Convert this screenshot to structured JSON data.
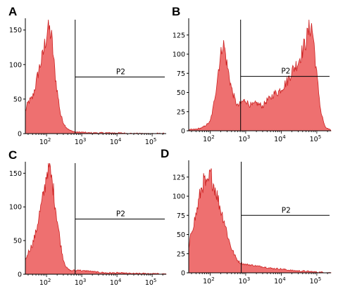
{
  "colors": {
    "fill": "#ee7070",
    "stroke": "#cc2222",
    "axis": "#000000"
  },
  "chart_data": [
    {
      "type": "area",
      "panel": "A",
      "gate_label": "P2",
      "gate_x": 650,
      "gate_y": 82,
      "xscale": "log",
      "xlim": [
        25,
        250000
      ],
      "ylim": [
        0,
        165
      ],
      "yticks": [
        0,
        50,
        100,
        150
      ],
      "xticks": [
        {
          "v": 100,
          "label": "10",
          "exp": "2"
        },
        {
          "v": 1000,
          "label": "10",
          "exp": "3"
        },
        {
          "v": 10000,
          "label": "10",
          "exp": "4"
        },
        {
          "v": 100000,
          "label": "10",
          "exp": "5"
        }
      ],
      "x": [
        25,
        30,
        40,
        50,
        60,
        70,
        80,
        90,
        100,
        110,
        120,
        130,
        140,
        150,
        170,
        200,
        250,
        300,
        350,
        400,
        450,
        500,
        600,
        700,
        800,
        1000,
        1500,
        2000,
        5000,
        10000,
        30000,
        100000,
        250000
      ],
      "y": [
        32,
        45,
        52,
        72,
        92,
        104,
        115,
        132,
        140,
        157,
        150,
        145,
        138,
        122,
        92,
        62,
        28,
        16,
        10,
        7,
        5,
        4,
        3,
        2,
        2,
        2,
        1,
        1,
        1,
        1,
        0,
        0,
        0
      ]
    },
    {
      "type": "area",
      "panel": "B",
      "gate_label": "P2",
      "gate_x": 720,
      "gate_y": 71,
      "xscale": "log",
      "xlim": [
        25,
        250000
      ],
      "ylim": [
        0,
        145
      ],
      "yticks": [
        0,
        25,
        50,
        75,
        100,
        125
      ],
      "xticks": [
        {
          "v": 100,
          "label": "10",
          "exp": "2"
        },
        {
          "v": 1000,
          "label": "10",
          "exp": "3"
        },
        {
          "v": 10000,
          "label": "10",
          "exp": "4"
        },
        {
          "v": 100000,
          "label": "10",
          "exp": "5"
        }
      ],
      "x": [
        25,
        40,
        60,
        80,
        100,
        120,
        150,
        180,
        200,
        220,
        250,
        280,
        300,
        350,
        400,
        500,
        600,
        700,
        800,
        1000,
        1200,
        1500,
        2000,
        2500,
        3000,
        4000,
        5000,
        6000,
        8000,
        10000,
        15000,
        20000,
        30000,
        40000,
        50000,
        60000,
        70000,
        80000,
        100000,
        130000,
        170000,
        250000
      ],
      "y": [
        1,
        2,
        4,
        8,
        12,
        28,
        58,
        88,
        98,
        114,
        110,
        95,
        85,
        70,
        55,
        40,
        32,
        35,
        38,
        40,
        35,
        33,
        36,
        34,
        32,
        40,
        42,
        48,
        50,
        55,
        65,
        78,
        90,
        105,
        118,
        132,
        138,
        122,
        72,
        25,
        5,
        0
      ]
    },
    {
      "type": "area",
      "panel": "C",
      "gate_label": "P2",
      "gate_x": 650,
      "gate_y": 82,
      "xscale": "log",
      "xlim": [
        25,
        250000
      ],
      "ylim": [
        0,
        165
      ],
      "yticks": [
        0,
        50,
        100,
        150
      ],
      "xticks": [
        {
          "v": 100,
          "label": "10",
          "exp": "2"
        },
        {
          "v": 1000,
          "label": "10",
          "exp": "3"
        },
        {
          "v": 10000,
          "label": "10",
          "exp": "4"
        },
        {
          "v": 100000,
          "label": "10",
          "exp": "5"
        }
      ],
      "x": [
        25,
        30,
        40,
        50,
        60,
        70,
        80,
        90,
        100,
        110,
        120,
        130,
        150,
        170,
        200,
        250,
        300,
        350,
        400,
        500,
        600,
        700,
        800,
        1000,
        1500,
        2000,
        3000,
        5000,
        10000,
        30000,
        100000,
        250000
      ],
      "y": [
        20,
        32,
        45,
        62,
        85,
        100,
        115,
        130,
        150,
        160,
        158,
        148,
        132,
        110,
        82,
        45,
        22,
        12,
        8,
        5,
        6,
        5,
        7,
        5,
        5,
        4,
        3,
        2,
        2,
        1,
        1,
        0
      ]
    },
    {
      "type": "area",
      "panel": "D",
      "gate_label": "P2",
      "gate_x": 750,
      "gate_y": 75,
      "xscale": "log",
      "xlim": [
        25,
        250000
      ],
      "ylim": [
        0,
        145
      ],
      "yticks": [
        0,
        25,
        50,
        75,
        100,
        125
      ],
      "xticks": [
        {
          "v": 100,
          "label": "10",
          "exp": "2"
        },
        {
          "v": 1000,
          "label": "10",
          "exp": "3"
        },
        {
          "v": 10000,
          "label": "10",
          "exp": "4"
        },
        {
          "v": 100000,
          "label": "10",
          "exp": "5"
        }
      ],
      "x": [
        25,
        30,
        40,
        50,
        60,
        70,
        80,
        90,
        100,
        110,
        120,
        140,
        160,
        180,
        200,
        250,
        300,
        350,
        400,
        500,
        600,
        700,
        800,
        1000,
        1500,
        2000,
        3000,
        5000,
        10000,
        20000,
        50000,
        100000,
        250000
      ],
      "y": [
        30,
        55,
        75,
        98,
        115,
        120,
        110,
        118,
        128,
        125,
        118,
        110,
        100,
        90,
        82,
        68,
        52,
        40,
        32,
        22,
        16,
        13,
        12,
        11,
        10,
        9,
        8,
        6,
        5,
        3,
        2,
        1,
        0
      ]
    }
  ]
}
